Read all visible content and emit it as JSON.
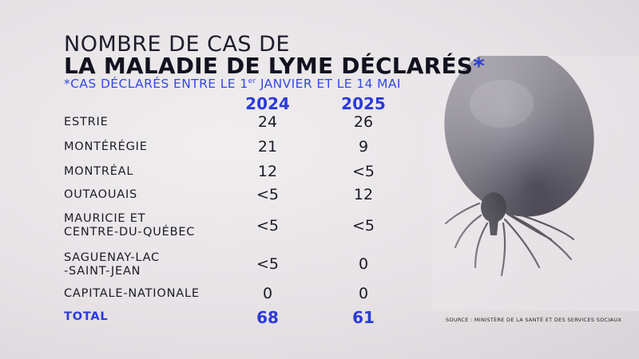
{
  "title": {
    "line1": "NOMBRE DE CAS DE",
    "line2": "LA MALADIE DE LYME DÉCLARÉS",
    "asterisk": "*"
  },
  "subtitle": {
    "prefix": "*CAS DÉCLARÉS ENTRE LE 1",
    "sup": "er",
    "suffix": " JANVIER ET LE 14 MAI"
  },
  "columns": [
    "2024",
    "2025"
  ],
  "rows": [
    {
      "region": "ESTRIE",
      "v2024": "24",
      "v2025": "26"
    },
    {
      "region": "MONTÉRÉGIE",
      "v2024": "21",
      "v2025": "9"
    },
    {
      "region": "MONTRÉAL",
      "v2024": "12",
      "v2025": "<5"
    },
    {
      "region": "OUTAOUAIS",
      "v2024": "<5",
      "v2025": "12"
    },
    {
      "region": "MAURICIE ET\nCENTRE-DU-QUÉBEC",
      "v2024": "<5",
      "v2025": "<5"
    },
    {
      "region": "SAGUENAY-LAC\n-SAINT-JEAN",
      "v2024": "<5",
      "v2025": "0"
    },
    {
      "region": "CAPITALE-NATIONALE",
      "v2024": "0",
      "v2025": "0"
    }
  ],
  "total": {
    "label": "TOTAL",
    "v2024": "68",
    "v2025": "61"
  },
  "source": "SOURCE : MINISTÈRE DE LA SANTÉ ET DES SERVICES SOCIAUX",
  "colors": {
    "accent": "#2b3bd8",
    "text": "#1b1b26",
    "background": "#e6e2e5"
  }
}
